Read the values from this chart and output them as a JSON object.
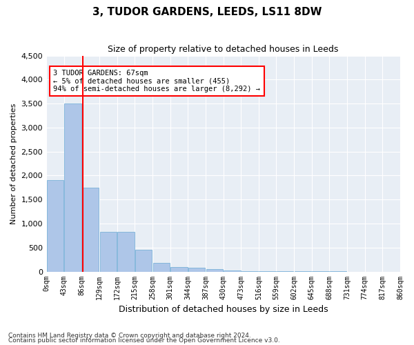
{
  "title": "3, TUDOR GARDENS, LEEDS, LS11 8DW",
  "subtitle": "Size of property relative to detached houses in Leeds",
  "xlabel": "Distribution of detached houses by size in Leeds",
  "ylabel": "Number of detached properties",
  "bin_edges": [
    "0sqm",
    "43sqm",
    "86sqm",
    "129sqm",
    "172sqm",
    "215sqm",
    "258sqm",
    "301sqm",
    "344sqm",
    "387sqm",
    "430sqm",
    "473sqm",
    "516sqm",
    "559sqm",
    "602sqm",
    "645sqm",
    "688sqm",
    "731sqm",
    "774sqm",
    "817sqm",
    "860sqm"
  ],
  "bar_heights": [
    1900,
    3500,
    1750,
    825,
    825,
    450,
    175,
    100,
    75,
    50,
    25,
    10,
    5,
    3,
    2,
    1,
    1,
    0,
    0,
    0
  ],
  "bar_color": "#aec6e8",
  "bar_edge_color": "#6aaad4",
  "vline_x": 1.56,
  "vline_color": "red",
  "annotation_text": "3 TUDOR GARDENS: 67sqm\n← 5% of detached houses are smaller (455)\n94% of semi-detached houses are larger (8,292) →",
  "annotation_box_color": "white",
  "annotation_box_edge_color": "red",
  "ylim": [
    0,
    4500
  ],
  "yticks": [
    0,
    500,
    1000,
    1500,
    2000,
    2500,
    3000,
    3500,
    4000,
    4500
  ],
  "bg_color": "#e8eef5",
  "footnote1": "Contains HM Land Registry data © Crown copyright and database right 2024.",
  "footnote2": "Contains public sector information licensed under the Open Government Licence v3.0."
}
